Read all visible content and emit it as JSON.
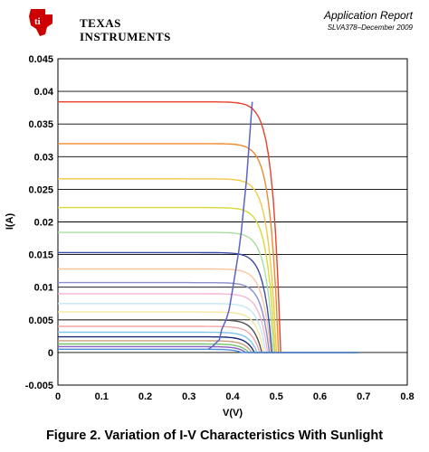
{
  "header": {
    "brand_line1": "TEXAS",
    "brand_line2": "INSTRUMENTS",
    "report_title": "Application Report",
    "report_id": "SLVA378–December 2009",
    "logo_color": "#cc0000"
  },
  "caption": "Figure 2. Variation of I-V Characteristics With Sunlight",
  "chart_data": {
    "type": "line",
    "title": "",
    "xlabel": "V(V)",
    "ylabel": "I(A)",
    "xlim": [
      0,
      0.8
    ],
    "ylim": [
      -0.005,
      0.045
    ],
    "x_ticks": [
      "0",
      "0.1",
      "0.2",
      "0.3",
      "0.4",
      "0.5",
      "0.6",
      "0.7",
      "0.8"
    ],
    "y_ticks": [
      "-0.005",
      "0",
      "0.005",
      "0.01",
      "0.015",
      "0.02",
      "0.025",
      "0.03",
      "0.035",
      "0.04",
      "0.045"
    ],
    "grid": "horizontal",
    "legend": "none",
    "series": [
      {
        "isc": 0.0384,
        "voc": 0.51,
        "color": "#e8402a"
      },
      {
        "isc": 0.032,
        "voc": 0.505,
        "color": "#f08a2c"
      },
      {
        "isc": 0.0266,
        "voc": 0.5,
        "color": "#f3c84a"
      },
      {
        "isc": 0.0222,
        "voc": 0.497,
        "color": "#d9d93a"
      },
      {
        "isc": 0.0184,
        "voc": 0.494,
        "color": "#a8dfa0"
      },
      {
        "isc": 0.0153,
        "voc": 0.49,
        "color": "#3b4aa8"
      },
      {
        "isc": 0.0128,
        "voc": 0.487,
        "color": "#f7c6a0"
      },
      {
        "isc": 0.0107,
        "voc": 0.484,
        "color": "#8a8fd0"
      },
      {
        "isc": 0.009,
        "voc": 0.48,
        "color": "#f2b6d6"
      },
      {
        "isc": 0.0075,
        "voc": 0.476,
        "color": "#c5e8f5"
      },
      {
        "isc": 0.0062,
        "voc": 0.472,
        "color": "#f5e6a0"
      },
      {
        "isc": 0.005,
        "voc": 0.467,
        "color": "#505050"
      },
      {
        "isc": 0.004,
        "voc": 0.462,
        "color": "#f3a6a6"
      },
      {
        "isc": 0.0031,
        "voc": 0.456,
        "color": "#7fc6e8"
      },
      {
        "isc": 0.0024,
        "voc": 0.45,
        "color": "#1a2a7a"
      },
      {
        "isc": 0.0018,
        "voc": 0.444,
        "color": "#caa07a"
      },
      {
        "isc": 0.0013,
        "voc": 0.437,
        "color": "#6fc46f"
      },
      {
        "isc": 0.0009,
        "voc": 0.43,
        "color": "#8a60c0"
      },
      {
        "isc": 0.0005,
        "voc": 0.42,
        "color": "#4a8ad8"
      }
    ],
    "mpp_trace": {
      "color": "#5b63c7",
      "x": [
        0.345,
        0.355,
        0.37,
        0.375,
        0.385,
        0.392,
        0.397,
        0.402,
        0.408,
        0.414,
        0.42,
        0.425,
        0.432,
        0.438,
        0.445
      ],
      "y": [
        0.0005,
        0.001,
        0.002,
        0.0035,
        0.005,
        0.0065,
        0.0085,
        0.0105,
        0.013,
        0.0155,
        0.0185,
        0.022,
        0.0265,
        0.032,
        0.0384
      ]
    }
  }
}
